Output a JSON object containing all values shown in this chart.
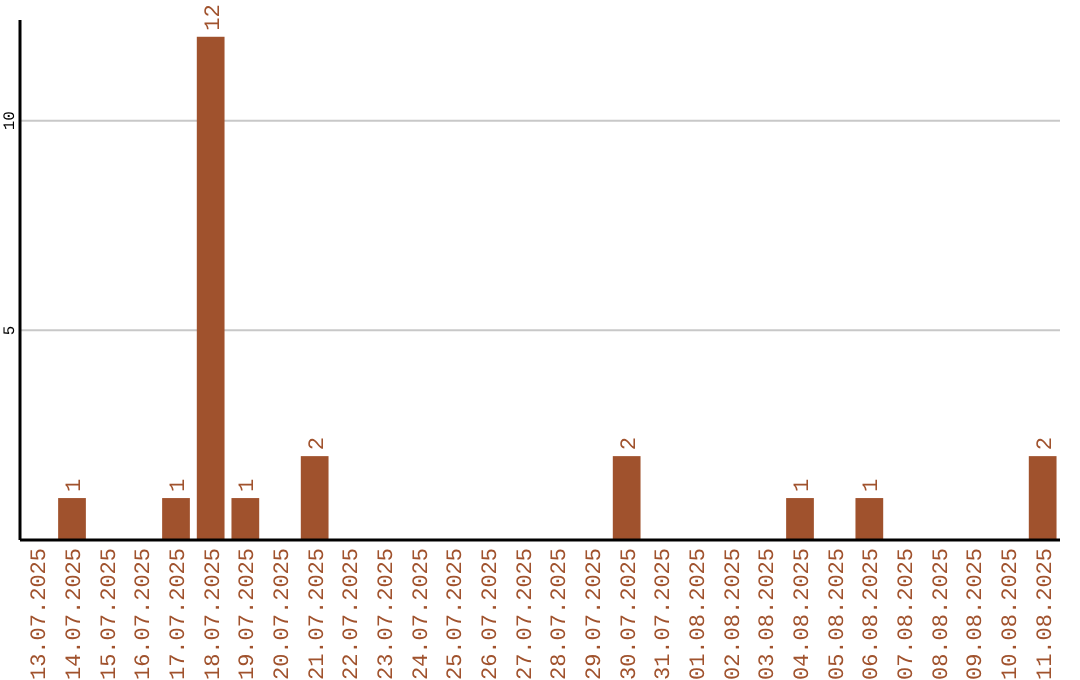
{
  "chart_data": {
    "type": "bar",
    "categories": [
      "13.07.2025",
      "14.07.2025",
      "15.07.2025",
      "16.07.2025",
      "17.07.2025",
      "18.07.2025",
      "19.07.2025",
      "20.07.2025",
      "21.07.2025",
      "22.07.2025",
      "23.07.2025",
      "24.07.2025",
      "25.07.2025",
      "26.07.2025",
      "27.07.2025",
      "28.07.2025",
      "29.07.2025",
      "30.07.2025",
      "31.07.2025",
      "01.08.2025",
      "02.08.2025",
      "03.08.2025",
      "04.08.2025",
      "05.08.2025",
      "06.08.2025",
      "07.08.2025",
      "08.08.2025",
      "09.08.2025",
      "10.08.2025",
      "11.08.2025"
    ],
    "values": [
      0,
      1,
      0,
      0,
      1,
      12,
      1,
      0,
      2,
      0,
      0,
      0,
      0,
      0,
      0,
      0,
      0,
      2,
      0,
      0,
      0,
      0,
      1,
      0,
      1,
      0,
      0,
      0,
      0,
      2
    ],
    "value_labels": [
      null,
      "1",
      null,
      null,
      "1",
      "12",
      "1",
      null,
      "2",
      null,
      null,
      null,
      null,
      null,
      null,
      null,
      null,
      "2",
      null,
      null,
      null,
      null,
      "1",
      null,
      "1",
      null,
      null,
      null,
      null,
      "2"
    ],
    "color": "#a0522d",
    "ylim": [
      0,
      12.4
    ],
    "yticks": [
      5,
      10
    ],
    "grid": "y"
  }
}
